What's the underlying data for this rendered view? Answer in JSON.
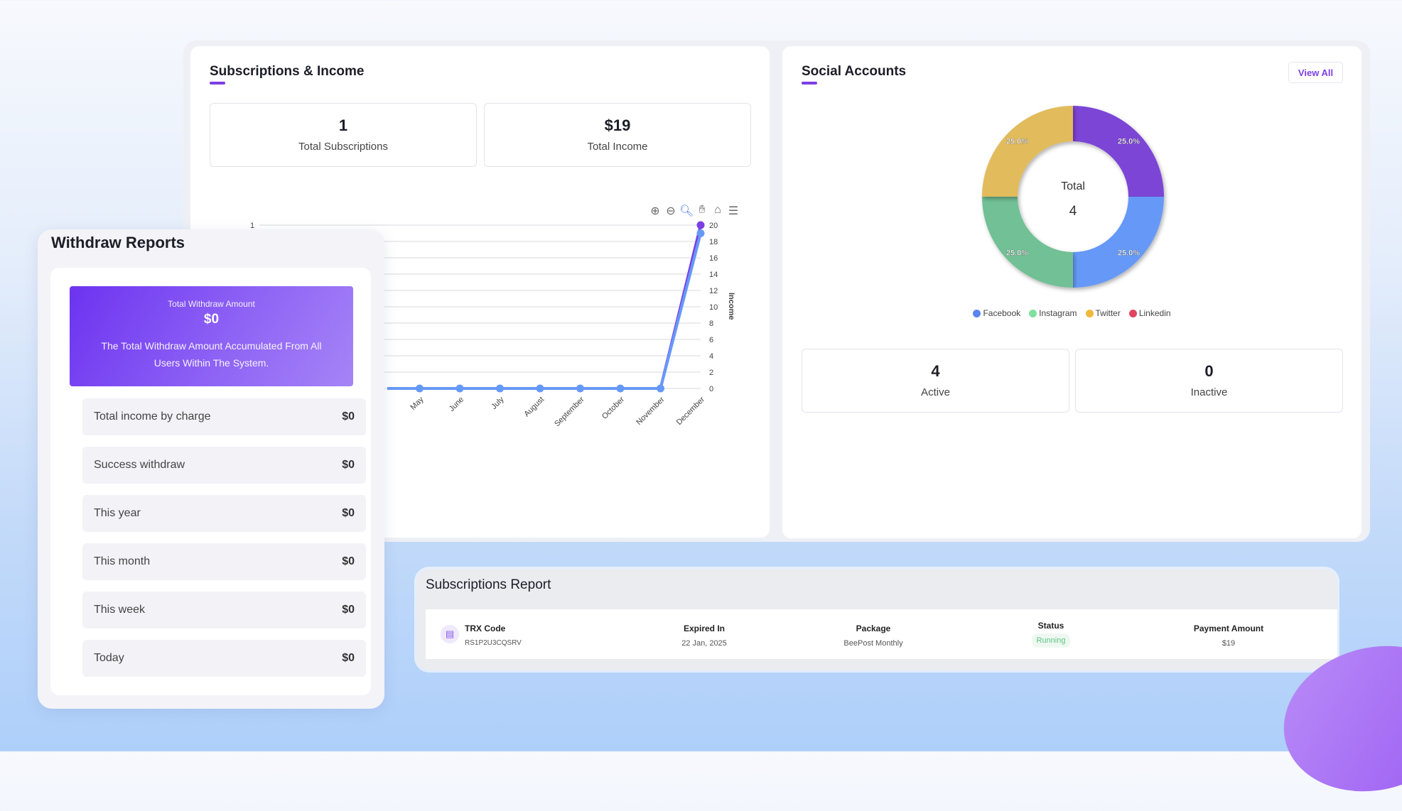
{
  "subscriptions_income": {
    "title": "Subscriptions & Income",
    "stats": [
      {
        "value": "1",
        "label": "Total Subscriptions"
      },
      {
        "value": "$19",
        "label": "Total Income"
      }
    ],
    "toolbar": [
      "zoom-in-icon",
      "zoom-out-icon",
      "selection-zoom-icon",
      "pan-icon",
      "reset-home-icon",
      "menu-icon"
    ]
  },
  "chart_data": {
    "type": "line",
    "categories": [
      "May",
      "June",
      "July",
      "August",
      "September",
      "October",
      "November",
      "December"
    ],
    "series": [
      {
        "values": [
          0,
          0,
          0,
          0,
          0,
          0,
          0,
          1
        ],
        "axis": "left",
        "color": "#7b3fe4"
      },
      {
        "values": [
          0,
          0,
          0,
          0,
          0,
          0,
          0,
          19
        ],
        "axis": "right",
        "color": "#6699f7"
      }
    ],
    "left_axis": {
      "ticks": [
        "1"
      ],
      "ylim": [
        0,
        1
      ]
    },
    "right_axis": {
      "label": "Income",
      "ticks": [
        "0",
        "2",
        "4",
        "6",
        "8",
        "10",
        "12",
        "14",
        "16",
        "18",
        "20"
      ],
      "ylim": [
        0,
        20
      ]
    },
    "grid": true
  },
  "social": {
    "title": "Social Accounts",
    "view_all": "View All",
    "donut": {
      "center_label": "Total",
      "center_value": "4",
      "slices": [
        {
          "value": 1,
          "label": "25.0%",
          "color": "#7b44d6"
        },
        {
          "value": 1,
          "label": "25.0%",
          "color": "#6699f7"
        },
        {
          "value": 1,
          "label": "25.0%",
          "color": "#72c095"
        },
        {
          "value": 1,
          "label": "25.0%",
          "color": "#e2bb5b"
        }
      ],
      "legend": [
        {
          "name": "Facebook",
          "color": "#5b86f0"
        },
        {
          "name": "Instagram",
          "color": "#7fe0a0"
        },
        {
          "name": "Twitter",
          "color": "#f0b93a"
        },
        {
          "name": "Linkedin",
          "color": "#e0445f"
        }
      ]
    },
    "stats": [
      {
        "value": "4",
        "label": "Active"
      },
      {
        "value": "0",
        "label": "Inactive"
      }
    ]
  },
  "withdraw": {
    "title": "Withdraw Reports",
    "banner": {
      "label": "Total Withdraw Amount",
      "value": "$0",
      "desc": "The Total Withdraw Amount Accumulated From All Users Within The System."
    },
    "rows": [
      {
        "label": "Total income by charge",
        "value": "$0"
      },
      {
        "label": "Success withdraw",
        "value": "$0"
      },
      {
        "label": "This year",
        "value": "$0"
      },
      {
        "label": "This month",
        "value": "$0"
      },
      {
        "label": "This week",
        "value": "$0"
      },
      {
        "label": "Today",
        "value": "$0"
      }
    ]
  },
  "subs_report": {
    "title": "Subscriptions Report",
    "columns": [
      {
        "header": "TRX Code",
        "value": "RS1P2U3CQSRV"
      },
      {
        "header": "Expired In",
        "value": "22 Jan, 2025"
      },
      {
        "header": "Package",
        "value": "BeePost Monthly"
      },
      {
        "header": "Status",
        "value": "Running"
      },
      {
        "header": "Payment Amount",
        "value": "$19"
      }
    ]
  }
}
